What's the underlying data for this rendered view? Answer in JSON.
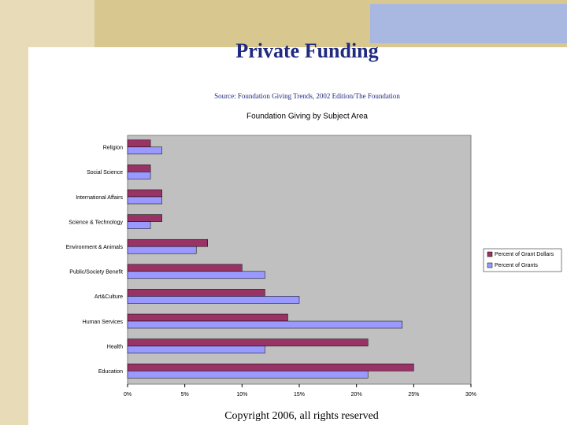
{
  "slide": {
    "title": "Private Funding",
    "source": "Source: Foundation Giving Trends, 2002 Edition/The Foundation",
    "footer": "Copyright 2006, all rights reserved"
  },
  "chart_data": {
    "type": "hbar",
    "title": "Foundation Giving by Subject Area",
    "categories": [
      "Religion",
      "Social Science",
      "International Affairs",
      "Science & Technology",
      "Environment & Animals",
      "Public/Society Benefit",
      "Art&Culture",
      "Human Services",
      "Health",
      "Education"
    ],
    "series": [
      {
        "name": "Percent of Grant Dollars",
        "color": "#993366",
        "values": [
          2,
          2,
          3,
          3,
          7,
          10,
          12,
          14,
          21,
          25
        ]
      },
      {
        "name": "Percent of Grants",
        "color": "#9999ff",
        "values": [
          3,
          2,
          3,
          2,
          6,
          12,
          15,
          24,
          12,
          21
        ]
      }
    ],
    "xlim": [
      0,
      30
    ],
    "xticks": [
      {
        "value": 0,
        "label": "0%"
      },
      {
        "value": 5,
        "label": "5%"
      },
      {
        "value": 10,
        "label": "10%"
      },
      {
        "value": 15,
        "label": "15%"
      },
      {
        "value": 20,
        "label": "20%"
      },
      {
        "value": 25,
        "label": "25%"
      },
      {
        "value": 30,
        "label": "30%"
      }
    ],
    "plot_background": "#c0c0c0",
    "legend": "right"
  }
}
